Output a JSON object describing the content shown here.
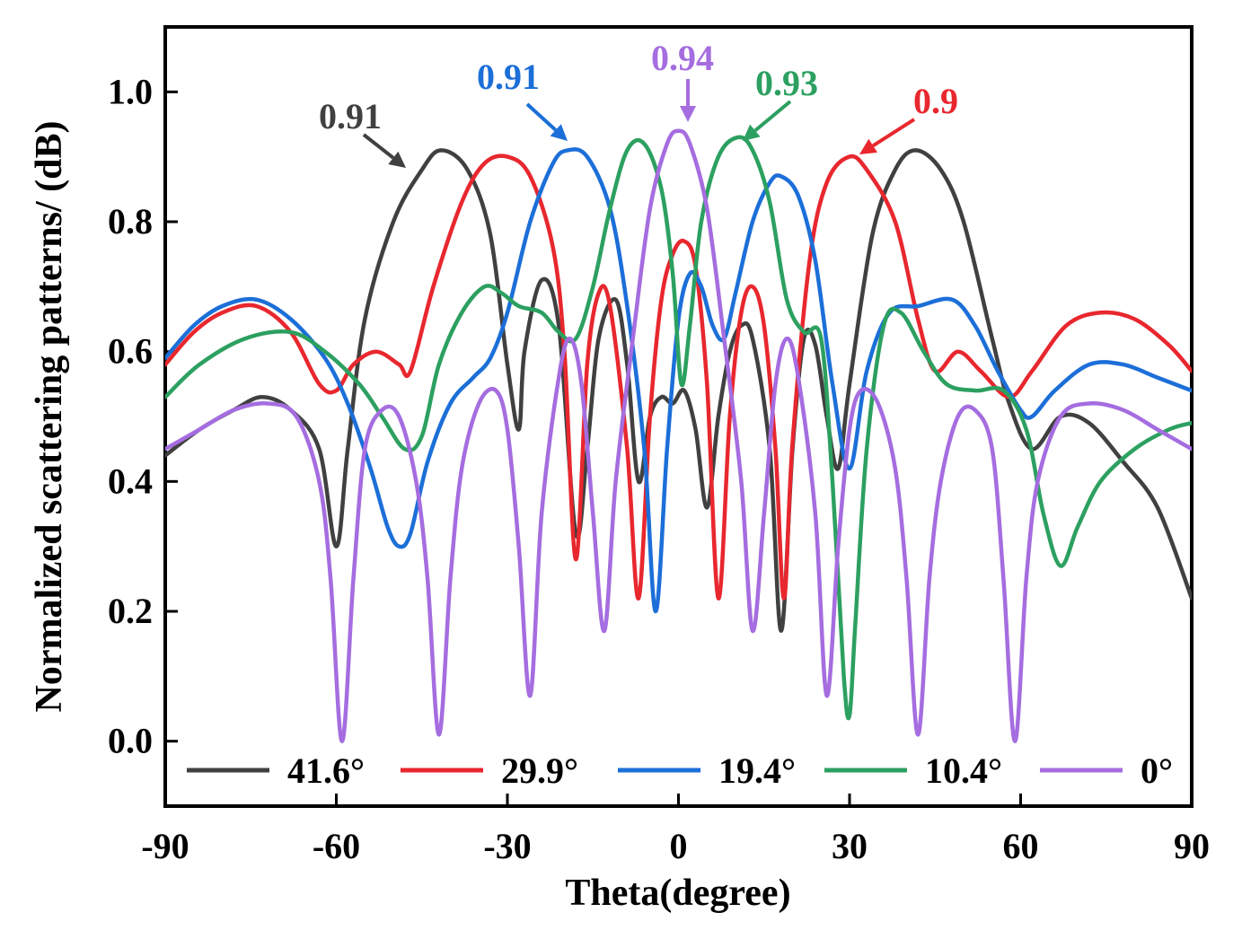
{
  "chart_data": {
    "type": "line",
    "title": "",
    "xlabel": "Theta(degree)",
    "ylabel": "Normalized scattering patterns/ (dB)",
    "xlim": [
      -90,
      90
    ],
    "ylim": [
      -0.1,
      1.1
    ],
    "xticks": [
      -90,
      -60,
      -30,
      0,
      30,
      60,
      90
    ],
    "xtick_labels": [
      "-90",
      "-60",
      "-30",
      "0",
      "30",
      "60",
      "90"
    ],
    "yticks": [
      0.0,
      0.2,
      0.4,
      0.6,
      0.8,
      1.0
    ],
    "ytick_labels": [
      "0.0",
      "0.2",
      "0.4",
      "0.6",
      "0.8",
      "1.0"
    ],
    "grid": false,
    "legend_position": "bottom",
    "series": [
      {
        "name": "41.6°",
        "color": "#404040",
        "points": [
          [
            -90,
            0.44
          ],
          [
            -84,
            0.48
          ],
          [
            -78,
            0.51
          ],
          [
            -73,
            0.53
          ],
          [
            -68,
            0.51
          ],
          [
            -63,
            0.45
          ],
          [
            -60,
            0.3
          ],
          [
            -58,
            0.45
          ],
          [
            -55,
            0.65
          ],
          [
            -50,
            0.8
          ],
          [
            -45,
            0.88
          ],
          [
            -41.6,
            0.91
          ],
          [
            -37,
            0.88
          ],
          [
            -33,
            0.78
          ],
          [
            -30,
            0.58
          ],
          [
            -28,
            0.48
          ],
          [
            -27,
            0.6
          ],
          [
            -24,
            0.71
          ],
          [
            -21,
            0.64
          ],
          [
            -18,
            0.32
          ],
          [
            -16,
            0.45
          ],
          [
            -14,
            0.62
          ],
          [
            -11,
            0.68
          ],
          [
            -9,
            0.58
          ],
          [
            -7,
            0.4
          ],
          [
            -5,
            0.5
          ],
          [
            -3,
            0.53
          ],
          [
            -1,
            0.52
          ],
          [
            1,
            0.54
          ],
          [
            3,
            0.48
          ],
          [
            5,
            0.36
          ],
          [
            7,
            0.5
          ],
          [
            9,
            0.6
          ],
          [
            11,
            0.64
          ],
          [
            13,
            0.62
          ],
          [
            16,
            0.45
          ],
          [
            18,
            0.17
          ],
          [
            20,
            0.45
          ],
          [
            22,
            0.62
          ],
          [
            24,
            0.61
          ],
          [
            26,
            0.5
          ],
          [
            28,
            0.42
          ],
          [
            30,
            0.55
          ],
          [
            34,
            0.78
          ],
          [
            38,
            0.88
          ],
          [
            41.6,
            0.91
          ],
          [
            46,
            0.88
          ],
          [
            50,
            0.8
          ],
          [
            55,
            0.62
          ],
          [
            58,
            0.52
          ],
          [
            62,
            0.45
          ],
          [
            67,
            0.5
          ],
          [
            72,
            0.49
          ],
          [
            78,
            0.43
          ],
          [
            84,
            0.36
          ],
          [
            90,
            0.22
          ]
        ]
      },
      {
        "name": "29.9°",
        "color": "#e8272e",
        "points": [
          [
            -90,
            0.58
          ],
          [
            -85,
            0.63
          ],
          [
            -80,
            0.66
          ],
          [
            -74,
            0.67
          ],
          [
            -68,
            0.63
          ],
          [
            -63,
            0.55
          ],
          [
            -60,
            0.54
          ],
          [
            -57,
            0.58
          ],
          [
            -53,
            0.6
          ],
          [
            -49,
            0.58
          ],
          [
            -47,
            0.57
          ],
          [
            -43,
            0.7
          ],
          [
            -38,
            0.83
          ],
          [
            -34,
            0.89
          ],
          [
            -29.9,
            0.9
          ],
          [
            -26,
            0.87
          ],
          [
            -22,
            0.76
          ],
          [
            -20,
            0.6
          ],
          [
            -18,
            0.28
          ],
          [
            -16,
            0.58
          ],
          [
            -14,
            0.69
          ],
          [
            -12,
            0.67
          ],
          [
            -9,
            0.45
          ],
          [
            -7,
            0.22
          ],
          [
            -5,
            0.5
          ],
          [
            -3,
            0.68
          ],
          [
            -1,
            0.75
          ],
          [
            1,
            0.77
          ],
          [
            3,
            0.73
          ],
          [
            5,
            0.55
          ],
          [
            7,
            0.22
          ],
          [
            9,
            0.5
          ],
          [
            11,
            0.66
          ],
          [
            13,
            0.7
          ],
          [
            15,
            0.64
          ],
          [
            17,
            0.45
          ],
          [
            18.5,
            0.22
          ],
          [
            20,
            0.46
          ],
          [
            23,
            0.74
          ],
          [
            26,
            0.86
          ],
          [
            29.9,
            0.9
          ],
          [
            33,
            0.88
          ],
          [
            38,
            0.8
          ],
          [
            42,
            0.65
          ],
          [
            45,
            0.57
          ],
          [
            49,
            0.6
          ],
          [
            53,
            0.57
          ],
          [
            58,
            0.53
          ],
          [
            62,
            0.57
          ],
          [
            68,
            0.64
          ],
          [
            74,
            0.66
          ],
          [
            80,
            0.65
          ],
          [
            86,
            0.61
          ],
          [
            90,
            0.57
          ]
        ]
      },
      {
        "name": "19.4°",
        "color": "#1c6fd8",
        "points": [
          [
            -90,
            0.59
          ],
          [
            -85,
            0.64
          ],
          [
            -80,
            0.67
          ],
          [
            -74,
            0.68
          ],
          [
            -68,
            0.65
          ],
          [
            -62,
            0.59
          ],
          [
            -58,
            0.52
          ],
          [
            -54,
            0.42
          ],
          [
            -51,
            0.33
          ],
          [
            -49,
            0.3
          ],
          [
            -47,
            0.32
          ],
          [
            -44,
            0.43
          ],
          [
            -40,
            0.52
          ],
          [
            -36,
            0.56
          ],
          [
            -33,
            0.59
          ],
          [
            -30,
            0.66
          ],
          [
            -26,
            0.8
          ],
          [
            -22,
            0.89
          ],
          [
            -19.4,
            0.91
          ],
          [
            -16,
            0.9
          ],
          [
            -12,
            0.82
          ],
          [
            -9,
            0.67
          ],
          [
            -6,
            0.45
          ],
          [
            -4,
            0.2
          ],
          [
            -2,
            0.45
          ],
          [
            0,
            0.65
          ],
          [
            2,
            0.72
          ],
          [
            4,
            0.7
          ],
          [
            6,
            0.64
          ],
          [
            8,
            0.62
          ],
          [
            10,
            0.69
          ],
          [
            13,
            0.8
          ],
          [
            16,
            0.86
          ],
          [
            18,
            0.87
          ],
          [
            21,
            0.84
          ],
          [
            24,
            0.74
          ],
          [
            27,
            0.55
          ],
          [
            30,
            0.42
          ],
          [
            33,
            0.57
          ],
          [
            37,
            0.66
          ],
          [
            42,
            0.67
          ],
          [
            48,
            0.68
          ],
          [
            52,
            0.64
          ],
          [
            56,
            0.57
          ],
          [
            60,
            0.51
          ],
          [
            62,
            0.5
          ],
          [
            66,
            0.54
          ],
          [
            72,
            0.58
          ],
          [
            78,
            0.58
          ],
          [
            84,
            0.56
          ],
          [
            90,
            0.54
          ]
        ]
      },
      {
        "name": "10.4°",
        "color": "#2ca060",
        "points": [
          [
            -90,
            0.53
          ],
          [
            -84,
            0.58
          ],
          [
            -76,
            0.62
          ],
          [
            -68,
            0.63
          ],
          [
            -62,
            0.6
          ],
          [
            -56,
            0.55
          ],
          [
            -52,
            0.5
          ],
          [
            -48,
            0.45
          ],
          [
            -45,
            0.47
          ],
          [
            -42,
            0.58
          ],
          [
            -38,
            0.66
          ],
          [
            -34,
            0.7
          ],
          [
            -31,
            0.69
          ],
          [
            -28,
            0.67
          ],
          [
            -24,
            0.66
          ],
          [
            -21,
            0.63
          ],
          [
            -18,
            0.62
          ],
          [
            -15,
            0.7
          ],
          [
            -12,
            0.82
          ],
          [
            -9,
            0.91
          ],
          [
            -6,
            0.92
          ],
          [
            -3,
            0.85
          ],
          [
            -1,
            0.72
          ],
          [
            0.5,
            0.55
          ],
          [
            2,
            0.64
          ],
          [
            4,
            0.8
          ],
          [
            7,
            0.9
          ],
          [
            10.4,
            0.93
          ],
          [
            13,
            0.91
          ],
          [
            16,
            0.83
          ],
          [
            19,
            0.68
          ],
          [
            22,
            0.63
          ],
          [
            25,
            0.62
          ],
          [
            27,
            0.4
          ],
          [
            29,
            0.1
          ],
          [
            30,
            0.04
          ],
          [
            31,
            0.18
          ],
          [
            33,
            0.45
          ],
          [
            36,
            0.64
          ],
          [
            39,
            0.66
          ],
          [
            43,
            0.6
          ],
          [
            47,
            0.55
          ],
          [
            52,
            0.54
          ],
          [
            57,
            0.54
          ],
          [
            61,
            0.48
          ],
          [
            64,
            0.35
          ],
          [
            67,
            0.27
          ],
          [
            70,
            0.33
          ],
          [
            74,
            0.4
          ],
          [
            80,
            0.45
          ],
          [
            86,
            0.48
          ],
          [
            90,
            0.49
          ]
        ]
      },
      {
        "name": "0°",
        "color": "#a56de0",
        "points": [
          [
            -90,
            0.45
          ],
          [
            -84,
            0.48
          ],
          [
            -78,
            0.51
          ],
          [
            -72,
            0.52
          ],
          [
            -67,
            0.5
          ],
          [
            -63,
            0.4
          ],
          [
            -61,
            0.25
          ],
          [
            -59,
            0.0
          ],
          [
            -57,
            0.25
          ],
          [
            -55,
            0.45
          ],
          [
            -52,
            0.51
          ],
          [
            -49,
            0.5
          ],
          [
            -46,
            0.4
          ],
          [
            -44,
            0.25
          ],
          [
            -42,
            0.01
          ],
          [
            -40,
            0.25
          ],
          [
            -38,
            0.42
          ],
          [
            -35,
            0.52
          ],
          [
            -32,
            0.54
          ],
          [
            -30,
            0.48
          ],
          [
            -28,
            0.3
          ],
          [
            -26,
            0.07
          ],
          [
            -24,
            0.35
          ],
          [
            -21,
            0.56
          ],
          [
            -19,
            0.62
          ],
          [
            -17,
            0.55
          ],
          [
            -15,
            0.35
          ],
          [
            -13,
            0.17
          ],
          [
            -11,
            0.4
          ],
          [
            -8,
            0.62
          ],
          [
            -5,
            0.82
          ],
          [
            -2,
            0.92
          ],
          [
            0,
            0.94
          ],
          [
            2,
            0.92
          ],
          [
            5,
            0.82
          ],
          [
            8,
            0.62
          ],
          [
            11,
            0.4
          ],
          [
            13,
            0.17
          ],
          [
            15,
            0.35
          ],
          [
            17,
            0.55
          ],
          [
            19,
            0.62
          ],
          [
            21,
            0.56
          ],
          [
            24,
            0.35
          ],
          [
            26,
            0.07
          ],
          [
            28,
            0.3
          ],
          [
            30,
            0.48
          ],
          [
            32,
            0.54
          ],
          [
            35,
            0.52
          ],
          [
            38,
            0.42
          ],
          [
            40,
            0.25
          ],
          [
            42,
            0.01
          ],
          [
            44,
            0.25
          ],
          [
            46,
            0.4
          ],
          [
            49,
            0.5
          ],
          [
            52,
            0.51
          ],
          [
            55,
            0.45
          ],
          [
            57,
            0.25
          ],
          [
            59,
            0.0
          ],
          [
            61,
            0.25
          ],
          [
            63,
            0.4
          ],
          [
            67,
            0.5
          ],
          [
            72,
            0.52
          ],
          [
            78,
            0.51
          ],
          [
            84,
            0.48
          ],
          [
            90,
            0.45
          ]
        ]
      }
    ],
    "annotations": [
      {
        "text": "0.91",
        "color": "#404040",
        "series": "41.6°"
      },
      {
        "text": "0.91",
        "color": "#1c6fd8",
        "series": "19.4°"
      },
      {
        "text": "0.94",
        "color": "#a56de0",
        "series": "0°"
      },
      {
        "text": "0.93",
        "color": "#2ca060",
        "series": "10.4°"
      },
      {
        "text": "0.9",
        "color": "#e8272e",
        "series": "29.9°"
      }
    ]
  }
}
